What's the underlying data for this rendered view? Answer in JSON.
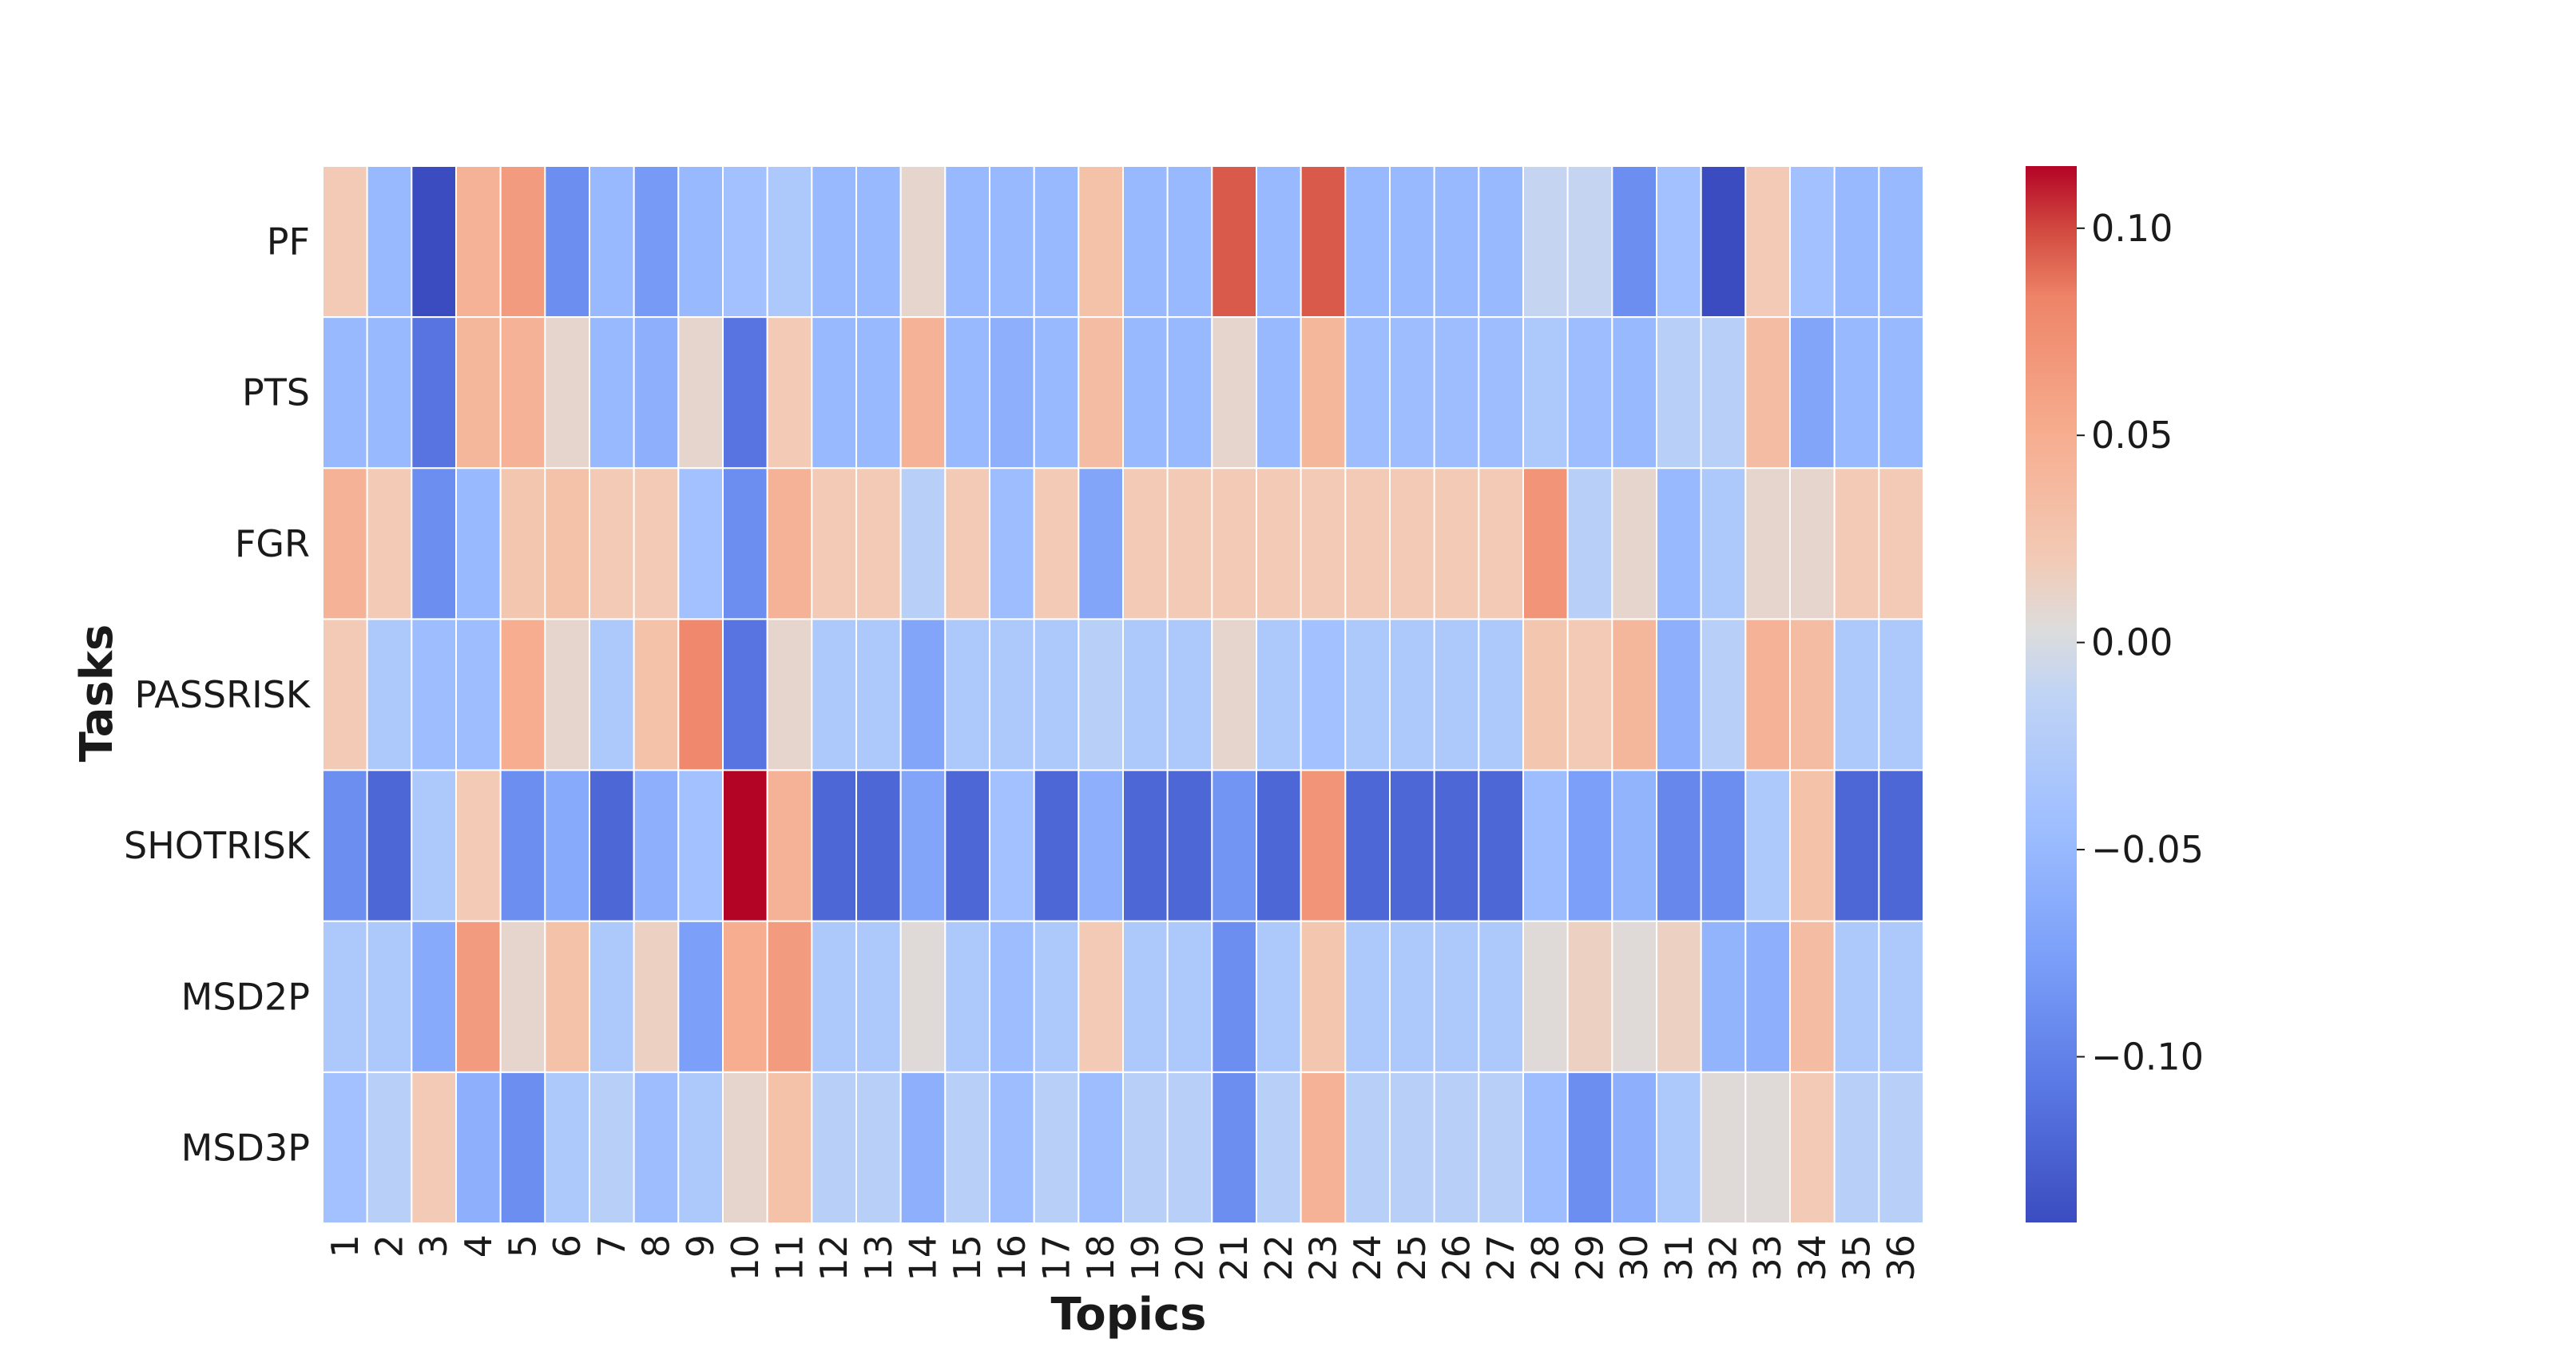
{
  "chart_data": {
    "type": "heatmap",
    "title": "",
    "xlabel": "Topics",
    "ylabel": "Tasks",
    "x_categories": [
      "1",
      "2",
      "3",
      "4",
      "5",
      "6",
      "7",
      "8",
      "9",
      "10",
      "11",
      "12",
      "13",
      "14",
      "15",
      "16",
      "17",
      "18",
      "19",
      "20",
      "21",
      "22",
      "23",
      "24",
      "25",
      "26",
      "27",
      "28",
      "29",
      "30",
      "31",
      "32",
      "33",
      "34",
      "35",
      "36"
    ],
    "y_categories": [
      "PF",
      "PTS",
      "FGR",
      "PASSRISK",
      "SHOTRISK",
      "MSD2P",
      "MSD3P"
    ],
    "values": [
      [
        0.02,
        -0.05,
        -0.14,
        0.045,
        0.065,
        -0.09,
        -0.05,
        -0.08,
        -0.05,
        -0.04,
        -0.03,
        -0.05,
        -0.05,
        0.01,
        -0.05,
        -0.05,
        -0.05,
        0.03,
        -0.05,
        -0.05,
        0.095,
        -0.05,
        0.095,
        -0.05,
        -0.05,
        -0.05,
        -0.05,
        -0.01,
        -0.01,
        -0.09,
        -0.04,
        -0.14,
        0.02,
        -0.04,
        -0.05,
        -0.05
      ],
      [
        -0.05,
        -0.05,
        -0.11,
        0.04,
        0.045,
        0.01,
        -0.05,
        -0.06,
        0.01,
        -0.11,
        0.02,
        -0.05,
        -0.05,
        0.045,
        -0.05,
        -0.06,
        -0.05,
        0.035,
        -0.05,
        -0.05,
        0.01,
        -0.05,
        0.04,
        -0.045,
        -0.045,
        -0.045,
        -0.045,
        -0.03,
        -0.045,
        -0.05,
        -0.02,
        -0.02,
        0.035,
        -0.07,
        -0.05,
        -0.05
      ],
      [
        0.045,
        0.02,
        -0.09,
        -0.05,
        0.025,
        0.03,
        0.02,
        0.02,
        -0.04,
        -0.09,
        0.045,
        0.02,
        0.02,
        -0.02,
        0.02,
        -0.045,
        0.02,
        -0.07,
        0.02,
        0.02,
        0.02,
        0.02,
        0.02,
        0.02,
        0.02,
        0.02,
        0.02,
        0.07,
        -0.02,
        0.01,
        -0.05,
        -0.03,
        0.01,
        0.01,
        0.02,
        0.02
      ],
      [
        0.02,
        -0.03,
        -0.045,
        -0.045,
        0.05,
        0.01,
        -0.03,
        0.03,
        0.08,
        -0.11,
        0.01,
        -0.03,
        -0.03,
        -0.07,
        -0.03,
        -0.03,
        -0.03,
        -0.02,
        -0.03,
        -0.03,
        0.01,
        -0.03,
        -0.04,
        -0.03,
        -0.03,
        -0.03,
        -0.03,
        0.025,
        0.02,
        0.04,
        -0.06,
        -0.02,
        0.045,
        0.035,
        -0.03,
        -0.03
      ],
      [
        -0.09,
        -0.12,
        -0.03,
        0.02,
        -0.09,
        -0.065,
        -0.12,
        -0.06,
        -0.04,
        0.115,
        0.045,
        -0.12,
        -0.12,
        -0.07,
        -0.12,
        -0.04,
        -0.12,
        -0.06,
        -0.12,
        -0.12,
        -0.085,
        -0.12,
        0.07,
        -0.12,
        -0.12,
        -0.12,
        -0.12,
        -0.045,
        -0.075,
        -0.055,
        -0.095,
        -0.09,
        -0.03,
        0.03,
        -0.12,
        -0.12
      ],
      [
        -0.03,
        -0.03,
        -0.065,
        0.065,
        0.01,
        0.03,
        -0.03,
        0.015,
        -0.075,
        0.05,
        0.065,
        -0.03,
        -0.03,
        0.005,
        -0.03,
        -0.045,
        -0.03,
        0.02,
        -0.03,
        -0.03,
        -0.09,
        -0.03,
        0.025,
        -0.03,
        -0.03,
        -0.03,
        -0.03,
        0.005,
        0.015,
        0.005,
        0.015,
        -0.055,
        -0.06,
        0.035,
        -0.03,
        -0.03
      ],
      [
        -0.04,
        -0.02,
        0.02,
        -0.06,
        -0.09,
        -0.03,
        -0.02,
        -0.045,
        -0.03,
        0.01,
        0.03,
        -0.02,
        -0.02,
        -0.06,
        -0.02,
        -0.045,
        -0.02,
        -0.045,
        -0.02,
        -0.02,
        -0.09,
        -0.02,
        0.045,
        -0.02,
        -0.02,
        -0.02,
        -0.02,
        -0.045,
        -0.09,
        -0.06,
        -0.03,
        0.005,
        0.005,
        0.02,
        -0.02,
        -0.02
      ]
    ],
    "vmin": -0.14,
    "vmax": 0.115,
    "colormap": "coolwarm",
    "colorbar_ticks": [
      0.1,
      0.05,
      0.0,
      -0.05,
      -0.1
    ],
    "colorbar_tick_labels": [
      "0.10",
      "0.05",
      "0.00",
      "−0.05",
      "−0.10"
    ],
    "grid": false,
    "legend": "colorbar-right"
  }
}
